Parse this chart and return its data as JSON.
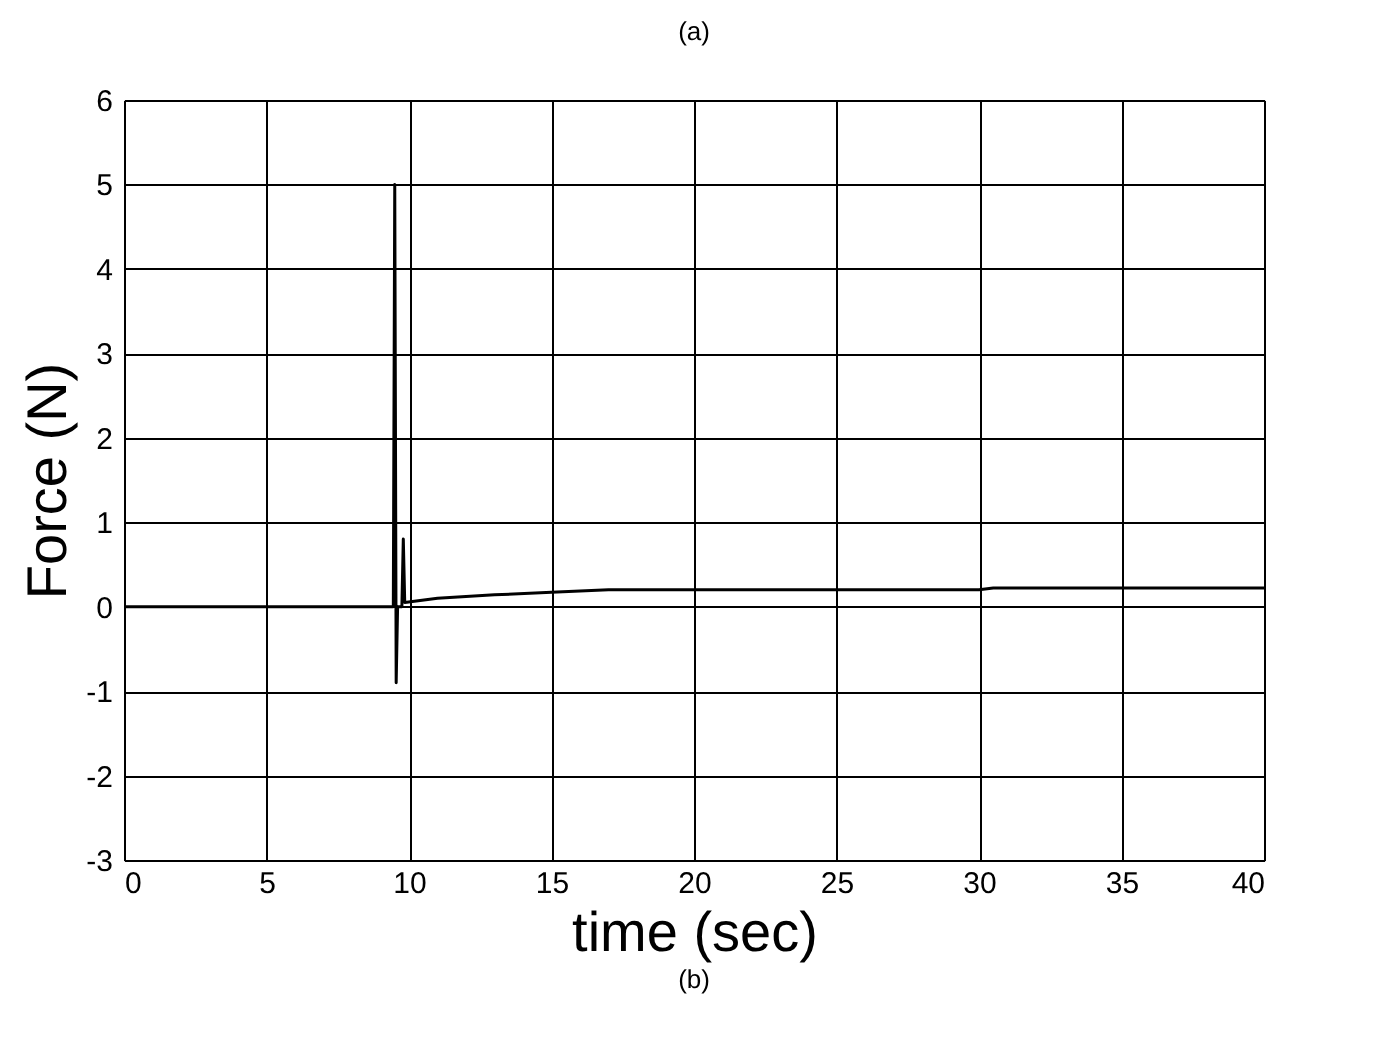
{
  "chart_data": {
    "type": "line",
    "title": "(a)",
    "annotations": [
      "(b)"
    ],
    "xlabel": "time (sec)",
    "ylabel": "Force (N)",
    "series": [
      {
        "color": "#000000",
        "x": [
          0,
          9.45,
          9.5,
          9.55,
          9.6,
          9.75,
          9.8,
          9.85,
          11,
          13,
          15,
          17,
          20,
          25,
          30,
          30.5,
          35,
          40
        ],
        "values": [
          0,
          0,
          5.0,
          -0.9,
          0,
          0,
          0.8,
          0.05,
          0.1,
          0.14,
          0.17,
          0.2,
          0.2,
          0.2,
          0.2,
          0.22,
          0.22,
          0.22
        ]
      }
    ],
    "xlim": [
      0,
      40
    ],
    "xticks": [
      0,
      5,
      10,
      15,
      20,
      25,
      30,
      35,
      40
    ],
    "ylim": [
      -3,
      6
    ],
    "yticks": [
      -3,
      -2,
      -1,
      0,
      1,
      2,
      3,
      4,
      5,
      6
    ],
    "grid": true,
    "marker": "none",
    "line_style": "solid"
  }
}
